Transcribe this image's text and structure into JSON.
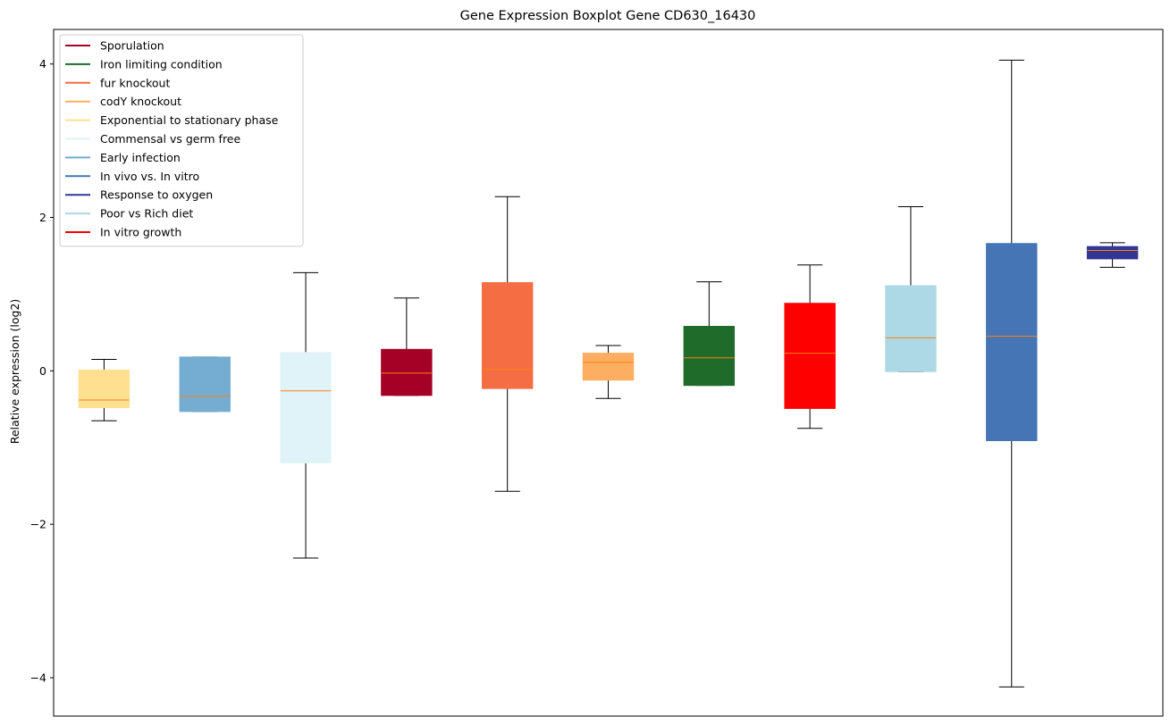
{
  "chart_data": {
    "type": "boxplot",
    "title": "Gene Expression Boxplot Gene CD630_16430",
    "xlabel": "",
    "ylabel": "Relative expression (log2)",
    "ylim": [
      -4.5,
      4.45
    ],
    "yticks": [
      -4,
      -2,
      0,
      2,
      4
    ],
    "ytick_labels": [
      "−4",
      "−2",
      "0",
      "2",
      "4"
    ],
    "grid": false,
    "legend_position": "top-left",
    "median_color": "#ff7f0e",
    "legend": [
      {
        "label": "Sporulation",
        "color": "#a50026"
      },
      {
        "label": "Iron limiting condition",
        "color": "#1e6b2a"
      },
      {
        "label": "fur knockout",
        "color": "#f46d43"
      },
      {
        "label": "codY knockout",
        "color": "#fdae61"
      },
      {
        "label": "Exponential to stationary phase",
        "color": "#fee090"
      },
      {
        "label": "Commensal vs germ free",
        "color": "#e0f3f8"
      },
      {
        "label": "Early infection",
        "color": "#74add1"
      },
      {
        "label": "In vivo vs. In vitro",
        "color": "#4575b4"
      },
      {
        "label": "Response to oxygen",
        "color": "#313695"
      },
      {
        "label": "Poor vs Rich diet",
        "color": "#add8e6"
      },
      {
        "label": "In vitro growth",
        "color": "#ff0000"
      }
    ],
    "boxes": [
      {
        "condition": "Exponential to stationary phase",
        "color": "#fee090",
        "whisker_low": -0.65,
        "q1": -0.48,
        "median": -0.38,
        "q3": 0.01,
        "whisker_high": 0.15
      },
      {
        "condition": "Early infection",
        "color": "#74add1",
        "whisker_low": -0.53,
        "q1": -0.53,
        "median": -0.33,
        "q3": 0.18,
        "whisker_high": 0.18
      },
      {
        "condition": "Commensal vs germ free",
        "color": "#e0f3f8",
        "whisker_low": -2.44,
        "q1": -1.2,
        "median": -0.26,
        "q3": 0.24,
        "whisker_high": 1.28
      },
      {
        "condition": "Sporulation",
        "color": "#a50026",
        "whisker_low": -0.32,
        "q1": -0.32,
        "median": -0.03,
        "q3": 0.28,
        "whisker_high": 0.95
      },
      {
        "condition": "fur knockout",
        "color": "#f46d43",
        "whisker_low": -1.57,
        "q1": -0.23,
        "median": 0.02,
        "q3": 1.15,
        "whisker_high": 2.27
      },
      {
        "condition": "codY knockout",
        "color": "#fdae61",
        "whisker_low": -0.36,
        "q1": -0.12,
        "median": 0.11,
        "q3": 0.23,
        "whisker_high": 0.33
      },
      {
        "condition": "Iron limiting condition",
        "color": "#1e6b2a",
        "whisker_low": -0.19,
        "q1": -0.19,
        "median": 0.17,
        "q3": 0.58,
        "whisker_high": 1.16
      },
      {
        "condition": "In vitro growth",
        "color": "#ff0000",
        "whisker_low": -0.75,
        "q1": -0.49,
        "median": 0.23,
        "q3": 0.88,
        "whisker_high": 1.38
      },
      {
        "condition": "Poor vs Rich diet",
        "color": "#add8e6",
        "whisker_low": -0.01,
        "q1": -0.01,
        "median": 0.43,
        "q3": 1.11,
        "whisker_high": 2.14
      },
      {
        "condition": "In vivo vs. In vitro",
        "color": "#4575b4",
        "whisker_low": -4.12,
        "q1": -0.91,
        "median": 0.45,
        "q3": 1.66,
        "whisker_high": 4.05
      },
      {
        "condition": "Response to oxygen",
        "color": "#313695",
        "whisker_low": 1.35,
        "q1": 1.46,
        "median": 1.57,
        "q3": 1.62,
        "whisker_high": 1.67
      }
    ]
  }
}
